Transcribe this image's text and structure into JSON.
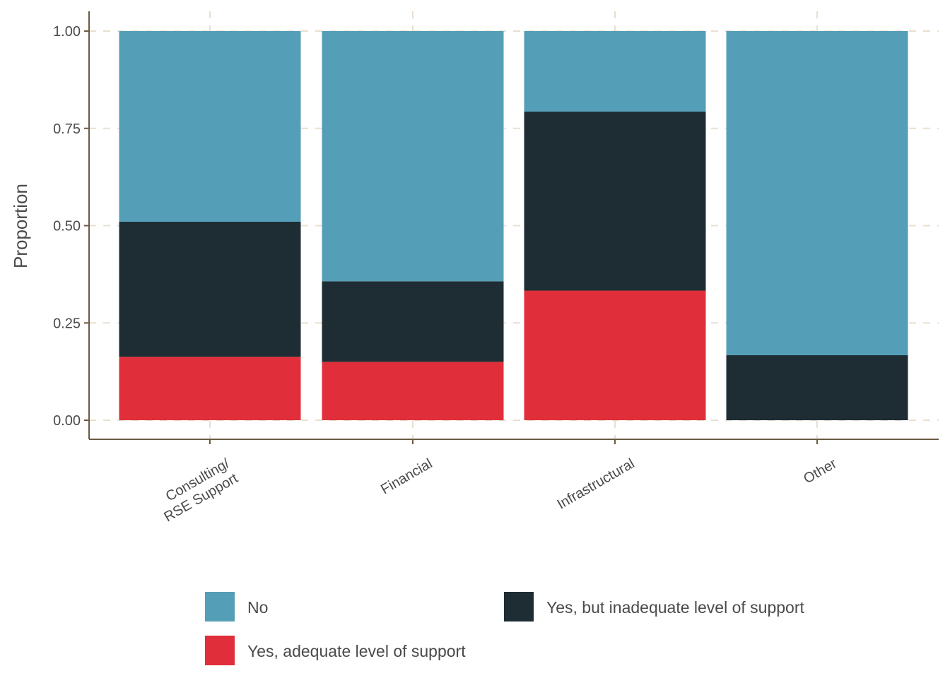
{
  "chart_data": {
    "type": "bar",
    "stacked": true,
    "categories": [
      [
        "Consulting/",
        "RSE Support"
      ],
      [
        "Financial"
      ],
      [
        "Infrastructural"
      ],
      [
        "Other"
      ]
    ],
    "series": [
      {
        "name": "Yes, adequate level of support",
        "color": "#E02F3A",
        "values": [
          0.163,
          0.15,
          0.333,
          0.0
        ]
      },
      {
        "name": "Yes, but inadequate level of support",
        "color": "#1E2D34",
        "values": [
          0.347,
          0.207,
          0.46,
          0.167
        ]
      },
      {
        "name": "No",
        "color": "#559EB7",
        "values": [
          0.49,
          0.643,
          0.207,
          0.833
        ]
      }
    ],
    "title": "",
    "xlabel": "",
    "ylabel": "Proportion",
    "ylim": [
      0,
      1
    ],
    "yticks": [
      "0.00",
      "0.25",
      "0.50",
      "0.75",
      "1.00"
    ],
    "grid": "dashed",
    "legend": {
      "position": "bottom",
      "order": [
        "No",
        "Yes, but inadequate level of support",
        "Yes, adequate level of support"
      ]
    }
  }
}
